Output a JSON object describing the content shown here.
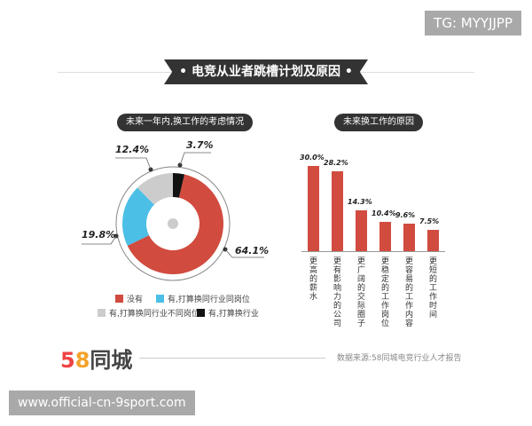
{
  "watermarks": {
    "top": "TG: MYYJJPP",
    "bottom": "www.official-cn-9sport.com"
  },
  "title": "电竞从业者跳槽计划及原因",
  "footer": {
    "logo": "58同城",
    "source": "数据来源:58同城电竞行业人才报告"
  },
  "chart_data": [
    {
      "type": "pie",
      "title": "未来一年内,换工作的考虑情况",
      "slices": [
        {
          "name": "有,打算换行业",
          "value": 3.7,
          "label": "3.7%",
          "color": "#111111"
        },
        {
          "name": "没有",
          "value": 64.1,
          "label": "64.1%",
          "color": "#d14b3f"
        },
        {
          "name": "有,打算换同行业同岗位",
          "value": 19.8,
          "label": "19.8%",
          "color": "#4bbfe6"
        },
        {
          "name": "有,打算换同行业不同岗位",
          "value": 12.4,
          "label": "12.4%",
          "color": "#cccccc"
        }
      ]
    },
    {
      "type": "bar",
      "title": "未来换工作的原因",
      "categories": [
        "更高的薪水",
        "更有影响力的公司",
        "更广阔的交际圈子",
        "更稳定的工作岗位",
        "更容易的工作内容",
        "更短的工作时间"
      ],
      "values": [
        30.0,
        28.2,
        14.3,
        10.4,
        9.6,
        7.5
      ],
      "labels": [
        "30.0%",
        "28.2%",
        "14.3%",
        "10.4%",
        "9.6%",
        "7.5%"
      ],
      "color": "#d14b3f"
    }
  ]
}
